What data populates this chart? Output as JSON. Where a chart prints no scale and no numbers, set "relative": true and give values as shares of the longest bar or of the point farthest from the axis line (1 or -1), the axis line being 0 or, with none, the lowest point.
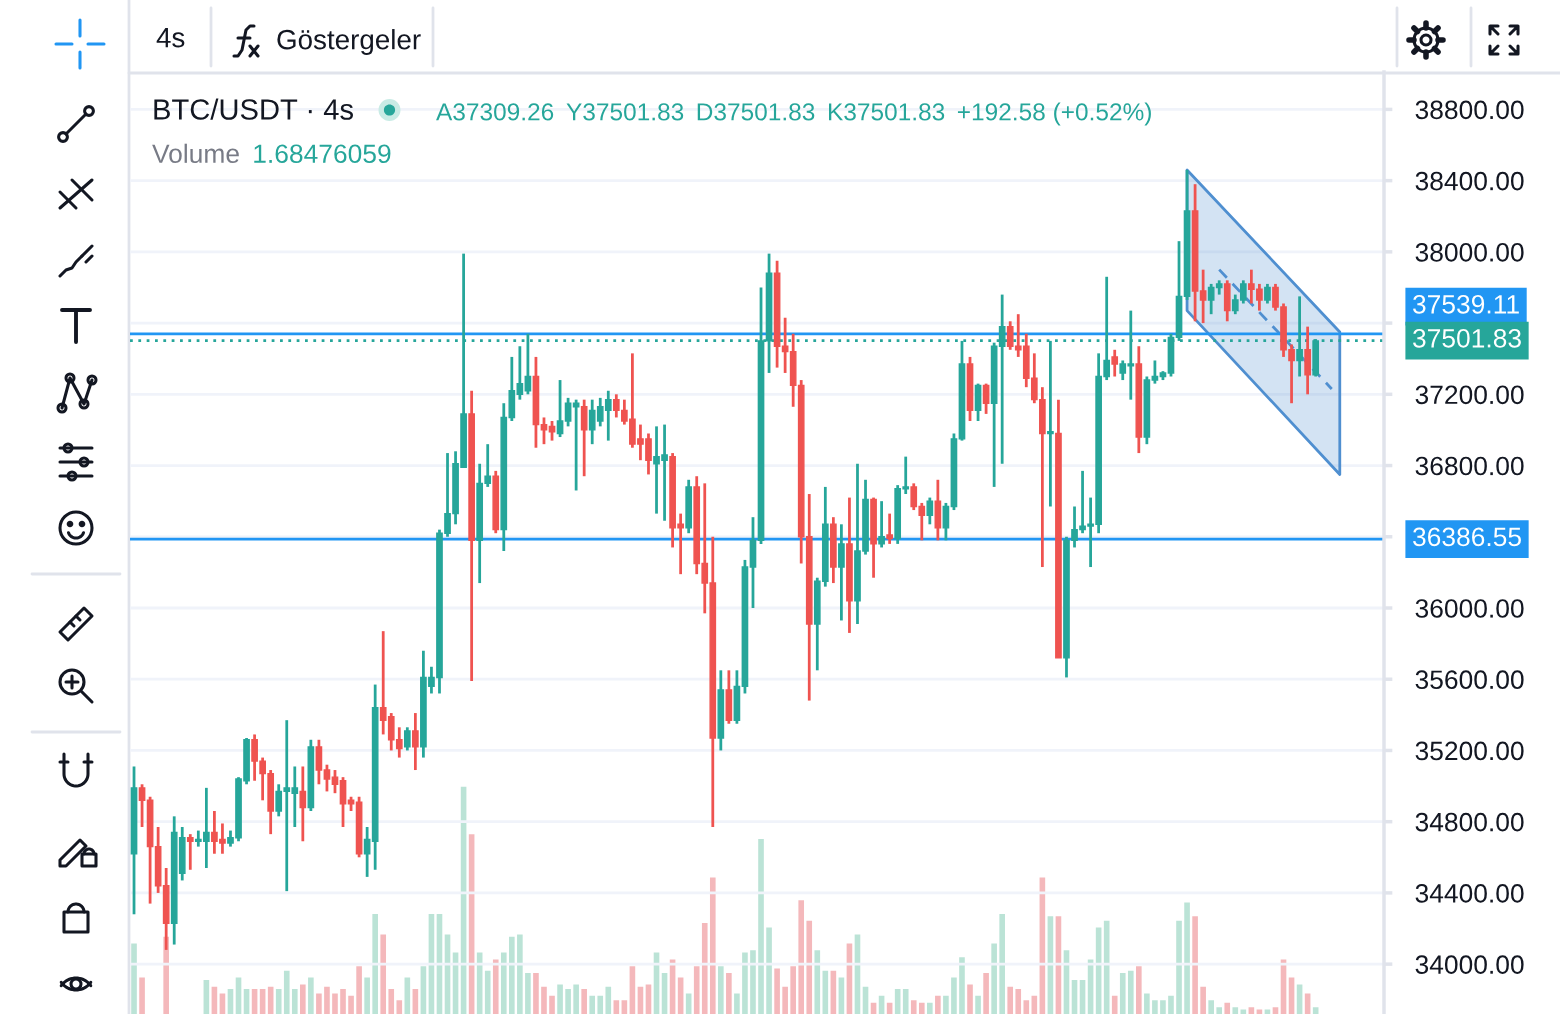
{
  "chart_data": [
    {
      "type": "candlestick",
      "title": "BTC/USDT · 4s",
      "annotations": [
        "4s",
        "Göstergeler",
        "A37309.26",
        "Y37501.83",
        "D37501.83",
        "K37501.83",
        "+192.58 (+0.52%)"
      ],
      "categories": [
        null,
        null,
        null,
        null,
        null,
        null,
        null,
        null,
        null,
        null,
        null,
        null,
        null,
        null,
        null,
        null,
        null,
        null,
        null,
        null,
        null,
        null,
        null,
        null,
        null,
        null,
        null,
        null,
        null,
        null,
        null,
        null,
        null,
        null,
        null,
        null,
        null,
        null,
        null,
        null,
        null,
        null,
        null,
        null,
        null,
        null,
        null,
        null,
        null,
        null,
        null,
        null,
        null,
        null,
        null,
        null,
        null,
        null,
        null,
        null,
        null,
        null,
        null,
        null,
        null,
        null,
        null,
        null,
        null,
        null,
        null,
        null,
        null,
        null,
        null,
        null,
        null,
        null,
        null,
        null,
        null,
        null,
        null,
        null,
        null,
        null,
        null,
        null,
        null,
        null,
        null,
        null,
        null,
        null,
        null,
        null,
        null,
        null,
        null,
        null,
        null,
        null,
        null,
        null,
        null,
        null,
        null,
        null,
        null,
        null,
        null,
        null,
        null,
        null,
        null,
        null,
        null,
        null,
        null,
        null,
        null,
        null,
        null,
        null,
        null,
        null,
        null,
        null,
        null,
        null,
        null,
        null,
        null,
        null,
        null,
        null,
        null,
        null,
        null,
        null,
        null,
        null,
        null,
        null,
        null,
        null,
        null,
        null,
        null,
        null,
        null,
        null,
        null,
        null,
        null,
        null
      ],
      "ohlc": [
        [
          34620,
          35110,
          34280,
          34990
        ],
        [
          34990,
          35010,
          34770,
          34920
        ],
        [
          34920,
          34940,
          34340,
          34660
        ],
        [
          34660,
          34770,
          34400,
          34440
        ],
        [
          34440,
          34540,
          34080,
          34230
        ],
        [
          34230,
          34830,
          34110,
          34740
        ],
        [
          34510,
          34770,
          34470,
          34710
        ],
        [
          34710,
          34730,
          34530,
          34690
        ],
        [
          34690,
          34750,
          34660,
          34700
        ],
        [
          34690,
          34990,
          34540,
          34740
        ],
        [
          34740,
          34860,
          34620,
          34690
        ],
        [
          34700,
          34790,
          34620,
          34680
        ],
        [
          34680,
          34750,
          34660,
          34710
        ],
        [
          34710,
          35050,
          34690,
          35040
        ],
        [
          35030,
          35270,
          35010,
          35260
        ],
        [
          35260,
          35290,
          35030,
          35140
        ],
        [
          35140,
          35160,
          34920,
          35070
        ],
        [
          35070,
          35090,
          34730,
          34860
        ],
        [
          34860,
          35010,
          34830,
          34970
        ],
        [
          34970,
          35370,
          34410,
          34990
        ],
        [
          34960,
          35110,
          34770,
          34990
        ],
        [
          34970,
          35110,
          34690,
          34880
        ],
        [
          34880,
          35260,
          34860,
          35220
        ],
        [
          35220,
          35260,
          35010,
          35090
        ],
        [
          35090,
          35120,
          34970,
          35040
        ],
        [
          35050,
          35090,
          34960,
          35010
        ],
        [
          35030,
          35050,
          34770,
          34900
        ],
        [
          34920,
          34940,
          34860,
          34900
        ],
        [
          34910,
          34940,
          34600,
          34620
        ],
        [
          34620,
          34770,
          34490,
          34700
        ],
        [
          34690,
          35570,
          34530,
          35440
        ],
        [
          35440,
          35870,
          35290,
          35370
        ],
        [
          35390,
          35410,
          35200,
          35260
        ],
        [
          35260,
          35330,
          35160,
          35210
        ],
        [
          35220,
          35330,
          35200,
          35310
        ],
        [
          35310,
          35410,
          35090,
          35220
        ],
        [
          35220,
          35760,
          35160,
          35610
        ],
        [
          35560,
          35670,
          35520,
          35610
        ],
        [
          35610,
          36440,
          35520,
          36420
        ],
        [
          36420,
          36870,
          36400,
          36530
        ],
        [
          36530,
          36880,
          36470,
          36810
        ],
        [
          36790,
          37990,
          36790,
          37090
        ],
        [
          37090,
          37220,
          35590,
          36380
        ],
        [
          36380,
          36810,
          36140,
          36700
        ],
        [
          36700,
          36920,
          36680,
          36740
        ],
        [
          36740,
          36770,
          36420,
          36440
        ],
        [
          36440,
          37150,
          36320,
          37070
        ],
        [
          37070,
          37410,
          37050,
          37220
        ],
        [
          37200,
          37470,
          37170,
          37260
        ],
        [
          37220,
          37540,
          37200,
          37300
        ],
        [
          37300,
          37410,
          36900,
          37030
        ],
        [
          37030,
          37070,
          36920,
          37000
        ],
        [
          37020,
          37050,
          36940,
          36990
        ],
        [
          36980,
          37280,
          36960,
          37050
        ],
        [
          37050,
          37180,
          37020,
          37150
        ],
        [
          37130,
          37170,
          36660,
          37150
        ],
        [
          37130,
          37170,
          36740,
          37000
        ],
        [
          37000,
          37170,
          36920,
          37110
        ],
        [
          37050,
          37180,
          37020,
          37130
        ],
        [
          37110,
          37220,
          36940,
          37170
        ],
        [
          37170,
          37200,
          37070,
          37110
        ],
        [
          37110,
          37170,
          37030,
          37050
        ],
        [
          37060,
          37430,
          36900,
          36920
        ],
        [
          36950,
          37030,
          36830,
          36920
        ],
        [
          36950,
          36980,
          36750,
          36830
        ],
        [
          36810,
          37020,
          36530,
          36850
        ],
        [
          36830,
          37030,
          36490,
          36860
        ],
        [
          36850,
          36870,
          36340,
          36450
        ],
        [
          36470,
          36530,
          36190,
          36450
        ],
        [
          36450,
          36720,
          36420,
          36680
        ],
        [
          36680,
          36740,
          36190,
          36250
        ],
        [
          36250,
          36700,
          35970,
          36140
        ],
        [
          36140,
          36400,
          34770,
          35270
        ],
        [
          35270,
          35650,
          35200,
          35540
        ],
        [
          35540,
          35650,
          35350,
          35370
        ],
        [
          35370,
          35650,
          35350,
          35560
        ],
        [
          35560,
          36270,
          35520,
          36230
        ],
        [
          36230,
          36510,
          36000,
          36380
        ],
        [
          36380,
          37800,
          36360,
          37500
        ],
        [
          37500,
          37990,
          37320,
          37880
        ],
        [
          37880,
          37950,
          37350,
          37470
        ],
        [
          37470,
          37630,
          37320,
          37440
        ],
        [
          37440,
          37540,
          37130,
          37250
        ],
        [
          37250,
          37280,
          36250,
          36400
        ],
        [
          36400,
          36640,
          35480,
          35910
        ],
        [
          35910,
          36170,
          35650,
          36150
        ],
        [
          36150,
          36680,
          36120,
          36470
        ],
        [
          36470,
          36510,
          36140,
          36230
        ],
        [
          36230,
          36470,
          35930,
          36360
        ],
        [
          36360,
          36620,
          35860,
          36040
        ],
        [
          36040,
          36810,
          35910,
          36320
        ],
        [
          36320,
          36720,
          36300,
          36610
        ],
        [
          36610,
          36620,
          36170,
          36360
        ],
        [
          36360,
          36600,
          36340,
          36400
        ],
        [
          36410,
          36530,
          36360,
          36390
        ],
        [
          36390,
          36690,
          36360,
          36670
        ],
        [
          36670,
          36850,
          36640,
          36680
        ],
        [
          36680,
          36700,
          36550,
          36570
        ],
        [
          36570,
          36590,
          36380,
          36520
        ],
        [
          36520,
          36620,
          36470,
          36600
        ],
        [
          36600,
          36720,
          36380,
          36450
        ],
        [
          36450,
          36590,
          36380,
          36570
        ],
        [
          36570,
          36980,
          36550,
          36950
        ],
        [
          36950,
          37500,
          36940,
          37370
        ],
        [
          37370,
          37410,
          37050,
          37110
        ],
        [
          37110,
          37260,
          37050,
          37250
        ],
        [
          37250,
          37260,
          37090,
          37150
        ],
        [
          37150,
          37490,
          36680,
          37470
        ],
        [
          37470,
          37760,
          36810,
          37580
        ],
        [
          37580,
          37610,
          37450,
          37470
        ],
        [
          37470,
          37650,
          37410,
          37450
        ],
        [
          37470,
          37540,
          37240,
          37290
        ],
        [
          37290,
          37430,
          37150,
          37170
        ],
        [
          37170,
          37240,
          36230,
          36980
        ],
        [
          36980,
          37500,
          36570,
          36990
        ],
        [
          36980,
          37170,
          35720,
          35720
        ],
        [
          35720,
          36400,
          35610,
          36380
        ],
        [
          36380,
          36570,
          36340,
          36440
        ],
        [
          36440,
          36770,
          36420,
          36460
        ],
        [
          36460,
          36620,
          36230,
          36470
        ],
        [
          36470,
          37430,
          36420,
          37300
        ],
        [
          37300,
          37860,
          37280,
          37390
        ],
        [
          37410,
          37450,
          37300,
          37370
        ],
        [
          37320,
          37390,
          37280,
          37370
        ],
        [
          37360,
          37670,
          37170,
          37370
        ],
        [
          37370,
          37470,
          36870,
          36960
        ],
        [
          36960,
          37300,
          36920,
          37280
        ],
        [
          37280,
          37390,
          37260,
          37300
        ],
        [
          37300,
          37330,
          37280,
          37320
        ],
        [
          37320,
          37540,
          37300,
          37520
        ],
        [
          37520,
          38060,
          37500,
          37750
        ],
        [
          37750,
          38460,
          37730,
          38230
        ],
        [
          38230,
          38380,
          37610,
          37780
        ],
        [
          37780,
          37900,
          37600,
          37730
        ],
        [
          37730,
          37820,
          37650,
          37800
        ],
        [
          37800,
          37840,
          37760,
          37820
        ],
        [
          37820,
          37840,
          37610,
          37670
        ],
        [
          37670,
          37760,
          37650,
          37730
        ],
        [
          37730,
          37840,
          37710,
          37820
        ],
        [
          37820,
          37900,
          37710,
          37790
        ],
        [
          37790,
          37820,
          37670,
          37730
        ],
        [
          37730,
          37820,
          37710,
          37800
        ],
        [
          37800,
          37820,
          37670,
          37690
        ],
        [
          37690,
          37710,
          37410,
          37450
        ],
        [
          37450,
          37480,
          37150,
          37390
        ],
        [
          37390,
          37750,
          37300,
          37450
        ],
        [
          37450,
          37580,
          37200,
          37310
        ],
        [
          37310,
          37510,
          37300,
          37500
        ],
        null,
        null,
        null,
        null,
        null,
        null,
        null,
        null
      ],
      "colors": [
        "#26a69a",
        "#ef5350",
        "#ef5350",
        "#ef5350",
        "#ef5350",
        "#26a69a",
        "#26a69a",
        "#ef5350",
        "#26a69a",
        "#26a69a",
        "#ef5350",
        "#ef5350",
        "#26a69a",
        "#26a69a",
        "#26a69a",
        "#ef5350",
        "#ef5350",
        "#ef5350",
        "#26a69a",
        "#26a69a",
        "#26a69a",
        "#ef5350",
        "#26a69a",
        "#ef5350",
        "#ef5350",
        "#ef5350",
        "#ef5350",
        "#ef5350",
        "#ef5350",
        "#26a69a",
        "#26a69a",
        "#ef5350",
        "#ef5350",
        "#ef5350",
        "#26a69a",
        "#ef5350",
        "#26a69a",
        "#26a69a",
        "#26a69a",
        "#26a69a",
        "#26a69a",
        "#26a69a",
        "#ef5350",
        "#26a69a",
        "#26a69a",
        "#ef5350",
        "#26a69a",
        "#26a69a",
        "#26a69a",
        "#26a69a",
        "#ef5350",
        "#ef5350",
        "#ef5350",
        "#26a69a",
        "#26a69a",
        "#26a69a",
        "#ef5350",
        "#26a69a",
        "#26a69a",
        "#26a69a",
        "#ef5350",
        "#ef5350",
        "#ef5350",
        "#ef5350",
        "#ef5350",
        "#26a69a",
        "#26a69a",
        "#ef5350",
        "#ef5350",
        "#26a69a",
        "#ef5350",
        "#ef5350",
        "#ef5350",
        "#26a69a",
        "#ef5350",
        "#26a69a",
        "#26a69a",
        "#26a69a",
        "#26a69a",
        "#26a69a",
        "#ef5350",
        "#ef5350",
        "#ef5350",
        "#ef5350",
        "#ef5350",
        "#26a69a",
        "#26a69a",
        "#ef5350",
        "#26a69a",
        "#ef5350",
        "#26a69a",
        "#26a69a",
        "#ef5350",
        "#26a69a",
        "#ef5350",
        "#26a69a",
        "#26a69a",
        "#ef5350",
        "#ef5350",
        "#26a69a",
        "#ef5350",
        "#26a69a",
        "#26a69a",
        "#26a69a",
        "#ef5350",
        "#26a69a",
        "#ef5350",
        "#26a69a",
        "#26a69a",
        "#ef5350",
        "#ef5350",
        "#ef5350",
        "#ef5350",
        "#ef5350",
        "#26a69a",
        "#ef5350",
        "#26a69a",
        "#26a69a",
        "#26a69a",
        "#26a69a",
        "#26a69a",
        "#26a69a",
        "#ef5350",
        "#26a69a",
        "#26a69a",
        "#ef5350",
        "#26a69a",
        "#26a69a",
        "#26a69a",
        "#26a69a",
        "#26a69a",
        "#26a69a",
        "#ef5350",
        "#ef5350",
        "#26a69a",
        "#26a69a",
        "#ef5350",
        "#26a69a",
        "#26a69a",
        "#ef5350",
        "#ef5350",
        "#26a69a",
        "#ef5350",
        "#ef5350",
        "#ef5350",
        "#26a69a",
        "#ef5350",
        "#26a69a",
        null,
        null,
        null,
        null,
        null,
        null,
        null,
        null
      ],
      "series": [
        {
          "type": "line",
          "color": "#4f8fd0",
          "line_style": "dashed",
          "values": [
            null,
            null,
            null,
            null,
            null,
            null,
            null,
            null,
            null,
            null,
            null,
            null,
            null,
            null,
            null,
            null,
            null,
            null,
            null,
            null,
            null,
            null,
            null,
            null,
            null,
            null,
            null,
            null,
            null,
            null,
            null,
            null,
            null,
            null,
            null,
            null,
            null,
            null,
            null,
            null,
            null,
            null,
            null,
            null,
            null,
            null,
            null,
            null,
            null,
            null,
            null,
            null,
            null,
            null,
            null,
            null,
            null,
            null,
            null,
            null,
            null,
            null,
            null,
            null,
            null,
            null,
            null,
            null,
            null,
            null,
            null,
            null,
            null,
            null,
            null,
            null,
            null,
            null,
            null,
            null,
            null,
            null,
            null,
            null,
            null,
            null,
            null,
            null,
            null,
            null,
            null,
            null,
            null,
            null,
            null,
            null,
            null,
            null,
            null,
            null,
            null,
            null,
            null,
            null,
            null,
            null,
            null,
            null,
            null,
            null,
            null,
            null,
            null,
            null,
            null,
            null,
            null,
            null,
            null,
            null,
            null,
            null,
            null,
            null,
            null,
            null,
            null,
            null,
            null,
            null,
            null,
            null,
            null,
            null,
            null,
            37900,
            null,
            null,
            null,
            null,
            null,
            null,
            null,
            null,
            null,
            null,
            null,
            null,
            null,
            37230,
            null,
            null,
            null,
            null,
            null,
            null
          ],
          "lower": [
            null,
            null,
            null,
            null,
            null,
            null,
            null,
            null,
            null,
            null,
            null,
            null,
            null,
            null,
            null,
            null,
            null,
            null,
            null,
            null,
            null,
            null,
            null,
            null,
            null,
            null,
            null,
            null,
            null,
            null,
            null,
            null,
            null,
            null,
            null,
            null,
            null,
            null,
            null,
            null,
            null,
            null,
            null,
            null,
            null,
            null,
            null,
            null,
            null,
            null,
            null,
            null,
            null,
            null,
            null,
            null,
            null,
            null,
            null,
            null,
            null,
            null,
            null,
            null,
            null,
            null,
            null,
            null,
            null,
            null,
            null,
            null,
            null,
            null,
            null,
            null,
            null,
            null,
            null,
            null,
            null,
            null,
            null,
            null,
            null,
            null,
            null,
            null,
            null,
            null,
            null,
            null,
            null,
            null,
            null,
            null,
            null,
            null,
            null,
            null,
            null,
            null,
            null,
            null,
            null,
            null,
            null,
            null,
            null,
            null,
            null,
            null,
            null,
            null,
            null,
            null,
            null,
            null,
            null,
            null,
            null,
            null,
            null,
            null,
            null,
            null,
            null,
            null,
            null,
            null,
            null,
            37670,
            null,
            null,
            null,
            null,
            null,
            null,
            null,
            null,
            null,
            null,
            null,
            null,
            null,
            null,
            null,
            null,
            null,
            null,
            36750,
            null,
            null,
            null,
            null,
            null
          ],
          "upper": [
            null,
            null,
            null,
            null,
            null,
            null,
            null,
            null,
            null,
            null,
            null,
            null,
            null,
            null,
            null,
            null,
            null,
            null,
            null,
            null,
            null,
            null,
            null,
            null,
            null,
            null,
            null,
            null,
            null,
            null,
            null,
            null,
            null,
            null,
            null,
            null,
            null,
            null,
            null,
            null,
            null,
            null,
            null,
            null,
            null,
            null,
            null,
            null,
            null,
            null,
            null,
            null,
            null,
            null,
            null,
            null,
            null,
            null,
            null,
            null,
            null,
            null,
            null,
            null,
            null,
            null,
            null,
            null,
            null,
            null,
            null,
            null,
            null,
            null,
            null,
            null,
            null,
            null,
            null,
            null,
            null,
            null,
            null,
            null,
            null,
            null,
            null,
            null,
            null,
            null,
            null,
            null,
            null,
            null,
            null,
            null,
            null,
            null,
            null,
            null,
            null,
            null,
            null,
            null,
            null,
            null,
            null,
            null,
            null,
            null,
            null,
            null,
            null,
            null,
            null,
            null,
            null,
            null,
            null,
            null,
            null,
            null,
            null,
            null,
            null,
            null,
            null,
            null,
            null,
            null,
            null,
            38460,
            null,
            null,
            null,
            null,
            null,
            null,
            null,
            null,
            null,
            null,
            null,
            null,
            null,
            null,
            null,
            null,
            null,
            null,
            37550,
            null,
            null,
            null,
            null,
            null
          ]
        }
      ],
      "ylim": [
        33720,
        39010
      ],
      "yticks": [
        {
          "value": 34000,
          "label": "34000.00"
        },
        {
          "value": 34400,
          "label": "34400.00"
        },
        {
          "value": 34800,
          "label": "34800.00"
        },
        {
          "value": 35200,
          "label": "35200.00"
        },
        {
          "value": 35600,
          "label": "35600.00"
        },
        {
          "value": 36000,
          "label": "36000.00"
        },
        {
          "value": 36400,
          "label": null
        },
        {
          "value": 36800,
          "label": "36800.00"
        },
        {
          "value": 37200,
          "label": "37200.00"
        },
        {
          "value": 37600,
          "label": null
        },
        {
          "value": 38000,
          "label": "38000.00"
        },
        {
          "value": 38400,
          "label": "38400.00"
        },
        {
          "value": 38800,
          "label": "38800.00"
        }
      ],
      "grid": "y",
      "ref_lines": [
        {
          "axis": "y",
          "value": 37539.11,
          "label": "37539.11",
          "color": "#2196f3"
        },
        {
          "axis": "y",
          "value": 37501.83,
          "label": "37501.83",
          "color": "#26a69a",
          "line_style": "dotted"
        },
        {
          "axis": "y",
          "value": 36386.55,
          "label": "36386.55",
          "color": "#2196f3"
        }
      ]
    },
    {
      "type": "bar",
      "relative": true,
      "title": "Volume",
      "annotations": [
        "1.68476059"
      ],
      "categories": [
        null,
        null,
        null,
        null,
        null,
        null,
        null,
        null,
        null,
        null,
        null,
        null,
        null,
        null,
        null,
        null,
        null,
        null,
        null,
        null,
        null,
        null,
        null,
        null,
        null,
        null,
        null,
        null,
        null,
        null,
        null,
        null,
        null,
        null,
        null,
        null,
        null,
        null,
        null,
        null,
        null,
        null,
        null,
        null,
        null,
        null,
        null,
        null,
        null,
        null,
        null,
        null,
        null,
        null,
        null,
        null,
        null,
        null,
        null,
        null,
        null,
        null,
        null,
        null,
        null,
        null,
        null,
        null,
        null,
        null,
        null,
        null,
        null,
        null,
        null,
        null,
        null,
        null,
        null,
        null,
        null,
        null,
        null,
        null,
        null,
        null,
        null,
        null,
        null,
        null,
        null,
        null,
        null,
        null,
        null,
        null,
        null,
        null,
        null,
        null,
        null,
        null,
        null,
        null,
        null,
        null,
        null,
        null,
        null,
        null,
        null,
        null,
        null,
        null,
        null,
        null,
        null,
        null,
        null,
        null,
        null,
        null,
        null,
        null,
        null,
        null,
        null,
        null,
        null,
        null,
        null,
        null,
        null,
        null,
        null,
        null,
        null,
        null,
        null,
        null,
        null,
        null,
        null,
        null,
        null,
        null,
        null,
        null,
        null,
        null,
        null,
        null,
        null,
        null,
        null,
        null
      ],
      "values": [
        0.31,
        0.16,
        null,
        null,
        0.34,
        null,
        null,
        null,
        null,
        0.15,
        0.12,
        0.09,
        0.11,
        0.16,
        0.11,
        0.11,
        0.11,
        0.12,
        0.11,
        0.19,
        0.11,
        0.13,
        0.16,
        0.09,
        0.12,
        0.09,
        0.11,
        0.08,
        0.21,
        0.16,
        0.44,
        0.35,
        0.11,
        0.06,
        0.16,
        0.11,
        0.21,
        0.44,
        0.44,
        0.35,
        0.27,
        1,
        0.79,
        0.27,
        0.19,
        0.24,
        0.27,
        0.34,
        0.35,
        0.18,
        0.18,
        0.12,
        0.08,
        0.13,
        0.11,
        0.13,
        0.11,
        0.08,
        0.08,
        0.12,
        0.06,
        0.06,
        0.21,
        0.12,
        0.13,
        0.27,
        0.18,
        0.24,
        0.16,
        0.09,
        0.21,
        0.4,
        0.6,
        0.21,
        0.18,
        0.09,
        0.27,
        0.28,
        0.77,
        0.38,
        0.2,
        0.12,
        0.21,
        0.5,
        0.41,
        0.28,
        0.19,
        0.19,
        0.16,
        0.31,
        0.35,
        0.12,
        0.05,
        0.08,
        0.05,
        0.11,
        0.11,
        0.06,
        0.05,
        0.05,
        0.08,
        0.08,
        0.16,
        0.25,
        0.13,
        0.08,
        0.18,
        0.31,
        0.44,
        0.12,
        0.11,
        0.06,
        0.08,
        0.6,
        0.43,
        0.43,
        0.28,
        0.15,
        0.15,
        0.24,
        0.38,
        0.41,
        0.08,
        0.18,
        0.19,
        0.21,
        0.09,
        0.06,
        0.06,
        0.08,
        0.41,
        0.49,
        0.43,
        0.12,
        0.06,
        0.03,
        0.05,
        0.03,
        0.02,
        0.03,
        0.02,
        0.02,
        0.03,
        0.24,
        0.16,
        0.13,
        0.09,
        0.03,
        null,
        null,
        null,
        null,
        null,
        null,
        null,
        null
      ],
      "colors": [
        "#bbe3d6",
        "#f4b8bb",
        "#f4b8bb",
        "#f4b8bb",
        "#f4b8bb",
        "#bbe3d6",
        "#bbe3d6",
        "#f4b8bb",
        "#bbe3d6",
        "#bbe3d6",
        "#f4b8bb",
        "#f4b8bb",
        "#bbe3d6",
        "#bbe3d6",
        "#bbe3d6",
        "#f4b8bb",
        "#f4b8bb",
        "#f4b8bb",
        "#bbe3d6",
        "#bbe3d6",
        "#bbe3d6",
        "#f4b8bb",
        "#bbe3d6",
        "#f4b8bb",
        "#f4b8bb",
        "#f4b8bb",
        "#f4b8bb",
        "#f4b8bb",
        "#f4b8bb",
        "#bbe3d6",
        "#bbe3d6",
        "#f4b8bb",
        "#f4b8bb",
        "#f4b8bb",
        "#bbe3d6",
        "#f4b8bb",
        "#bbe3d6",
        "#bbe3d6",
        "#bbe3d6",
        "#bbe3d6",
        "#bbe3d6",
        "#bbe3d6",
        "#f4b8bb",
        "#bbe3d6",
        "#bbe3d6",
        "#f4b8bb",
        "#bbe3d6",
        "#bbe3d6",
        "#bbe3d6",
        "#bbe3d6",
        "#f4b8bb",
        "#f4b8bb",
        "#f4b8bb",
        "#bbe3d6",
        "#bbe3d6",
        "#bbe3d6",
        "#f4b8bb",
        "#bbe3d6",
        "#bbe3d6",
        "#bbe3d6",
        "#f4b8bb",
        "#f4b8bb",
        "#f4b8bb",
        "#f4b8bb",
        "#f4b8bb",
        "#bbe3d6",
        "#bbe3d6",
        "#f4b8bb",
        "#f4b8bb",
        "#bbe3d6",
        "#f4b8bb",
        "#f4b8bb",
        "#f4b8bb",
        "#bbe3d6",
        "#f4b8bb",
        "#bbe3d6",
        "#bbe3d6",
        "#bbe3d6",
        "#bbe3d6",
        "#bbe3d6",
        "#f4b8bb",
        "#f4b8bb",
        "#f4b8bb",
        "#f4b8bb",
        "#f4b8bb",
        "#bbe3d6",
        "#bbe3d6",
        "#f4b8bb",
        "#bbe3d6",
        "#f4b8bb",
        "#bbe3d6",
        "#bbe3d6",
        "#f4b8bb",
        "#bbe3d6",
        "#f4b8bb",
        "#bbe3d6",
        "#bbe3d6",
        "#f4b8bb",
        "#f4b8bb",
        "#bbe3d6",
        "#f4b8bb",
        "#bbe3d6",
        "#bbe3d6",
        "#bbe3d6",
        "#f4b8bb",
        "#bbe3d6",
        "#f4b8bb",
        "#bbe3d6",
        "#bbe3d6",
        "#f4b8bb",
        "#f4b8bb",
        "#f4b8bb",
        "#f4b8bb",
        "#f4b8bb",
        "#bbe3d6",
        "#f4b8bb",
        "#bbe3d6",
        "#bbe3d6",
        "#bbe3d6",
        "#bbe3d6",
        "#bbe3d6",
        "#bbe3d6",
        "#f4b8bb",
        "#bbe3d6",
        "#bbe3d6",
        "#f4b8bb",
        "#bbe3d6",
        "#bbe3d6",
        "#bbe3d6",
        "#bbe3d6",
        "#bbe3d6",
        "#bbe3d6",
        "#f4b8bb",
        "#f4b8bb",
        "#bbe3d6",
        "#bbe3d6",
        "#f4b8bb",
        "#bbe3d6",
        "#bbe3d6",
        "#f4b8bb",
        "#f4b8bb",
        "#bbe3d6",
        "#f4b8bb",
        "#f4b8bb",
        "#f4b8bb",
        "#bbe3d6",
        "#f4b8bb",
        "#bbe3d6",
        null,
        null,
        null,
        null,
        null,
        null,
        null,
        null
      ]
    }
  ]
}
